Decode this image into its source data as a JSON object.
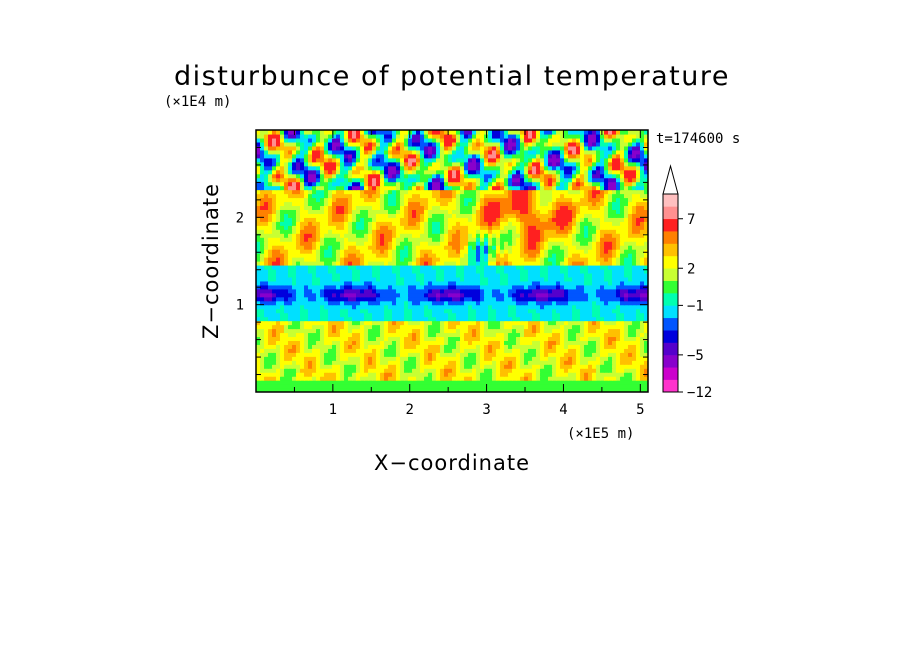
{
  "chart_data": {
    "type": "heatmap",
    "title": "disturbunce of potential temperature",
    "time_label": "t=174600 s",
    "xlabel": "X−coordinate",
    "ylabel": "Z−coordinate",
    "x_unit": "(×1E5 m)",
    "y_unit": "(×1E4 m)",
    "xlim": [
      0,
      5.1
    ],
    "ylim": [
      0,
      3.0
    ],
    "x_ticks": [
      1,
      2,
      3,
      4,
      5
    ],
    "y_ticks": [
      1,
      2
    ],
    "colorbar": {
      "extend": "max",
      "tick_values": [
        7,
        2,
        -1,
        -5,
        -12
      ],
      "tick_labels": [
        "7",
        "2",
        "−1",
        "−5",
        "−12"
      ],
      "levels": [
        -12,
        -9,
        -7,
        -5,
        -4,
        -3,
        -2,
        -1,
        0,
        1,
        2,
        3,
        4,
        5,
        7,
        9,
        12
      ],
      "colors": [
        "#ff33cc",
        "#cc00cc",
        "#8800cc",
        "#5500cc",
        "#0000dd",
        "#0055ff",
        "#00e0ff",
        "#00ffb0",
        "#33ff33",
        "#c8ff33",
        "#ffff00",
        "#ffc000",
        "#ff8000",
        "#ff2020",
        "#ff9090",
        "#ffc0c0"
      ]
    },
    "field_description_bands": [
      {
        "z_range": [
          0,
          0.15
        ],
        "dominant": "green"
      },
      {
        "z_range": [
          0.15,
          0.8
        ],
        "dominant": "yellow/orange with green patches"
      },
      {
        "z_range": [
          0.8,
          1.45
        ],
        "dominant": "cyan with blue streaks near z=1.1"
      },
      {
        "z_range": [
          1.45,
          2.3
        ],
        "dominant": "yellow/orange, red waves near x=3.5"
      },
      {
        "z_range": [
          2.3,
          3.0
        ],
        "dominant": "alternating blue and orange wave cells"
      }
    ]
  }
}
